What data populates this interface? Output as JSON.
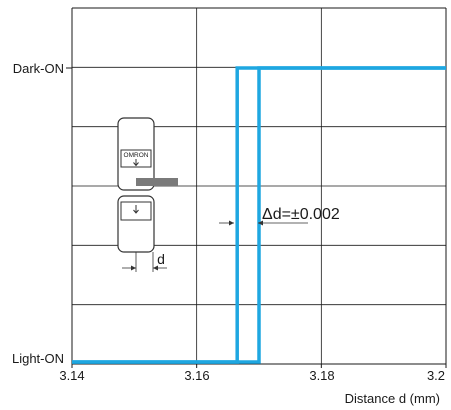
{
  "chart_data": {
    "type": "line",
    "title": "",
    "xlabel": "Distance d (mm)",
    "ylabel": "",
    "x_ticks": [
      3.14,
      3.16,
      3.18,
      3.2
    ],
    "x_tick_labels": [
      "3.14",
      "3.16",
      "3.18",
      "3.2"
    ],
    "y_states": [
      "Light-ON",
      "Dark-ON"
    ],
    "xlim": [
      3.14,
      3.2
    ],
    "grid": true,
    "series": [
      {
        "values": [
          {
            "x": 3.14,
            "state": "Light-ON"
          },
          {
            "x": 3.1665,
            "state": "Light-ON"
          },
          {
            "x": 3.1665,
            "state": "Dark-ON"
          },
          {
            "x": 3.2,
            "state": "Dark-ON"
          }
        ]
      },
      {
        "values": [
          {
            "x": 3.14,
            "state": "Light-ON"
          },
          {
            "x": 3.17,
            "state": "Light-ON"
          },
          {
            "x": 3.17,
            "state": "Dark-ON"
          },
          {
            "x": 3.2,
            "state": "Dark-ON"
          }
        ]
      }
    ],
    "annotations": {
      "delta": "Δd=±0.002",
      "d_label": "d",
      "logo_text": "OMRON"
    },
    "colors": {
      "series": "#1ea7e1",
      "grid": "#1a1a1a",
      "sensor": "#333333",
      "target": "#7a7a7a"
    }
  }
}
